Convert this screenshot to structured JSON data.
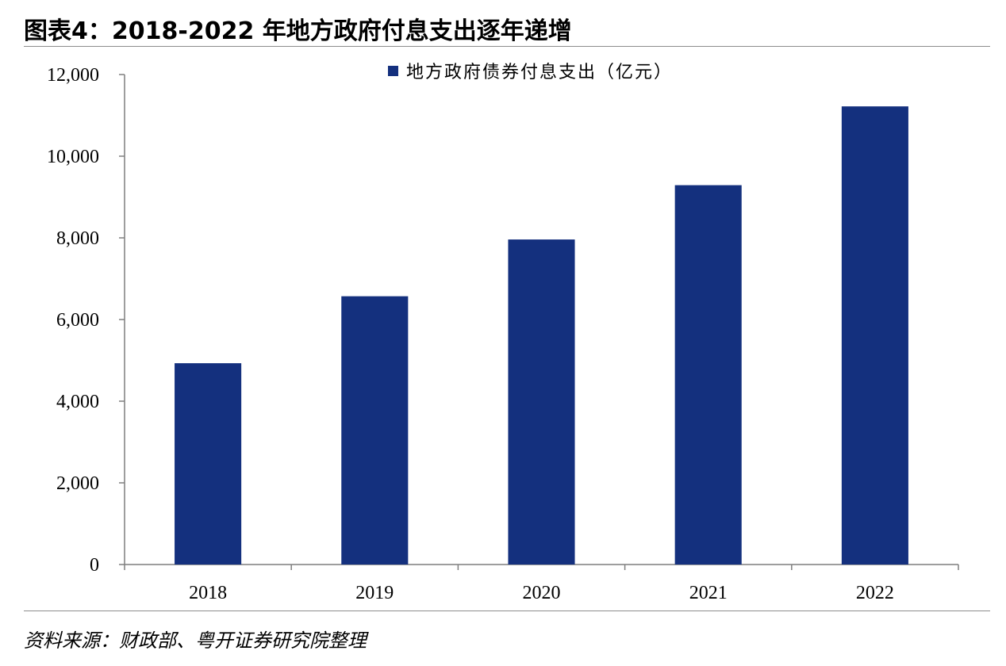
{
  "title": "图表4：2018-2022 年地方政府付息支出逐年递增",
  "source": "资料来源：财政部、粤开证券研究院整理",
  "colors": {
    "bar": "#14307e",
    "axis": "#7f7f7f"
  },
  "chart_data": {
    "type": "bar",
    "title": "图表4：2018-2022 年地方政府付息支出逐年递增",
    "xlabel": "",
    "ylabel": "",
    "categories": [
      "2018",
      "2019",
      "2020",
      "2021",
      "2022"
    ],
    "series": [
      {
        "name": "地方政府债券付息支出（亿元）",
        "values": [
          4930,
          6570,
          7960,
          9290,
          11220
        ]
      }
    ],
    "ylim": [
      0,
      12000
    ],
    "yticks": [
      0,
      2000,
      4000,
      6000,
      8000,
      10000,
      12000
    ],
    "ytick_labels": [
      "0",
      "2,000",
      "4,000",
      "6,000",
      "8,000",
      "10,000",
      "12,000"
    ],
    "grid": false,
    "legend_position": "top-center"
  }
}
